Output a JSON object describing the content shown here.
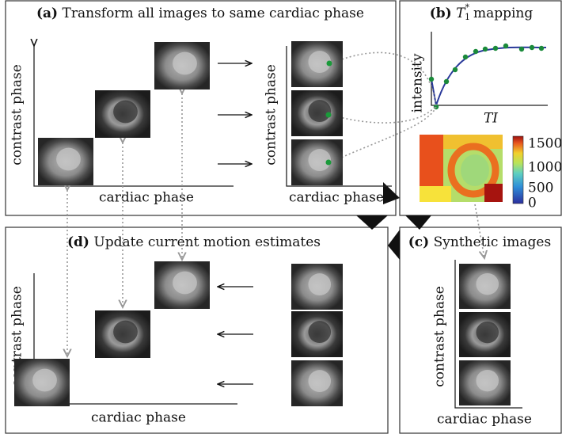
{
  "panels": {
    "a": {
      "label": "(a)",
      "title": "Transform all images to same cardiac phase",
      "y_axis_left": "contrast phase",
      "x_axis_left": "cardiac phase",
      "y_axis_right": "contrast phase",
      "x_axis_right": "cardiac phase"
    },
    "b": {
      "label": "(b)",
      "title_symbol": "T",
      "title_subscript": "1",
      "title_superscript": "*",
      "title_rest": "mapping",
      "plot_y_axis": "intensity",
      "plot_x_axis": "TI",
      "colorbar_ticks": [
        "1500",
        "1000",
        "500",
        "0"
      ]
    },
    "c": {
      "label": "(c)",
      "title": "Synthetic images",
      "y_axis": "contrast phase",
      "x_axis": "cardiac phase"
    },
    "d": {
      "label": "(d)",
      "title": "Update current motion estimates",
      "y_axis": "contrast phase",
      "x_axis": "cardiac phase"
    }
  }
}
